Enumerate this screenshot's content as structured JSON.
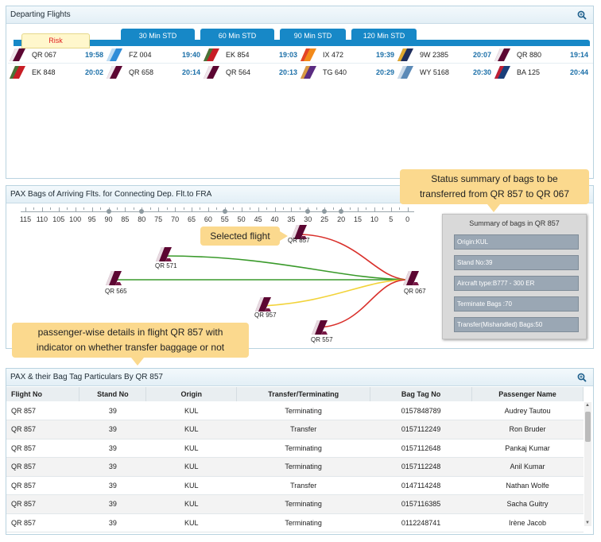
{
  "departing": {
    "title": "Departing Flights",
    "tabs": [
      "Risk",
      "30 Min STD",
      "60 Min STD",
      "90 Min STD",
      "120 Min STD"
    ],
    "flights_row1": [
      {
        "no": "QR 067",
        "time": "19:58",
        "airline": "qatar"
      },
      {
        "no": "FZ 004",
        "time": "19:40",
        "airline": "flydubai"
      },
      {
        "no": "EK 854",
        "time": "19:03",
        "airline": "emirates"
      },
      {
        "no": "IX 472",
        "time": "19:39",
        "airline": "airindiaexpress"
      },
      {
        "no": "9W 2385",
        "time": "20:07",
        "airline": "jetairways"
      },
      {
        "no": "QR 880",
        "time": "19:14",
        "airline": "qatar"
      }
    ],
    "flights_row2": [
      {
        "no": "EK 848",
        "time": "20:02",
        "airline": "emirates"
      },
      {
        "no": "QR 658",
        "time": "20:14",
        "airline": "qatar"
      },
      {
        "no": "QR 564",
        "time": "20:13",
        "airline": "qatar"
      },
      {
        "no": "TG 640",
        "time": "20:29",
        "airline": "thai"
      },
      {
        "no": "WY 5168",
        "time": "20:30",
        "airline": "omanair"
      },
      {
        "no": "BA 125",
        "time": "20:44",
        "airline": "british"
      }
    ]
  },
  "pax_bags": {
    "title": "PAX Bags of Arriving Flts. for Connecting Dep. Flt.to FRA",
    "scale_labels": [
      "115",
      "110",
      "105",
      "100",
      "95",
      "90",
      "85",
      "80",
      "75",
      "70",
      "65",
      "60",
      "55",
      "50",
      "45",
      "40",
      "35",
      "30",
      "25",
      "20",
      "15",
      "10",
      "5",
      "0"
    ],
    "arrivals": [
      "QR 857",
      "QR 571",
      "QR 565",
      "QR 957",
      "QR 557"
    ],
    "departure": "QR 067",
    "summary": {
      "title": "Summary of bags in QR 857",
      "origin": "Origin:KUL",
      "stand": "Stand No:39",
      "aircraft": "Aircraft type:B777 - 300 ER",
      "terminate": "Terminate Bags :70",
      "transfer": "Transfer(Mishandled) Bags:50"
    }
  },
  "callouts": {
    "status_l1": "Status summary of bags to be",
    "status_l2": "transferred from QR 857 to QR 067",
    "selected": "Selected flight",
    "pax_l1": "passenger-wise details in flight QR 857 with",
    "pax_l2": "indicator on whether transfer baggage or not"
  },
  "table": {
    "title": "PAX & their Bag Tag Particulars By QR 857",
    "headers": [
      "Flight No",
      "Stand No",
      "Origin",
      "Transfer/Terminating",
      "Bag Tag No",
      "Passenger Name"
    ],
    "rows": [
      [
        "QR 857",
        "39",
        "KUL",
        "Terminating",
        "0157848789",
        "Audrey Tautou"
      ],
      [
        "QR 857",
        "39",
        "KUL",
        "Transfer",
        "0157112249",
        "Ron Bruder"
      ],
      [
        "QR 857",
        "39",
        "KUL",
        "Terminating",
        "0157112648",
        "Pankaj Kumar"
      ],
      [
        "QR 857",
        "39",
        "KUL",
        "Terminating",
        "0157112248",
        "Anil Kumar"
      ],
      [
        "QR 857",
        "39",
        "KUL",
        "Transfer",
        "0147114248",
        "Nathan Wolfe"
      ],
      [
        "QR 857",
        "39",
        "KUL",
        "Terminating",
        "0157116385",
        "Sacha Guitry"
      ],
      [
        "QR 857",
        "39",
        "KUL",
        "Terminating",
        "0112248741",
        "Irène Jacob"
      ]
    ]
  },
  "colors": {
    "accent": "#1788c7",
    "risk_text": "#e02020",
    "callout": "#fbd98e",
    "line_red": "#d9302b",
    "line_green": "#3a9a2b",
    "line_yellow": "#f2d33a"
  }
}
